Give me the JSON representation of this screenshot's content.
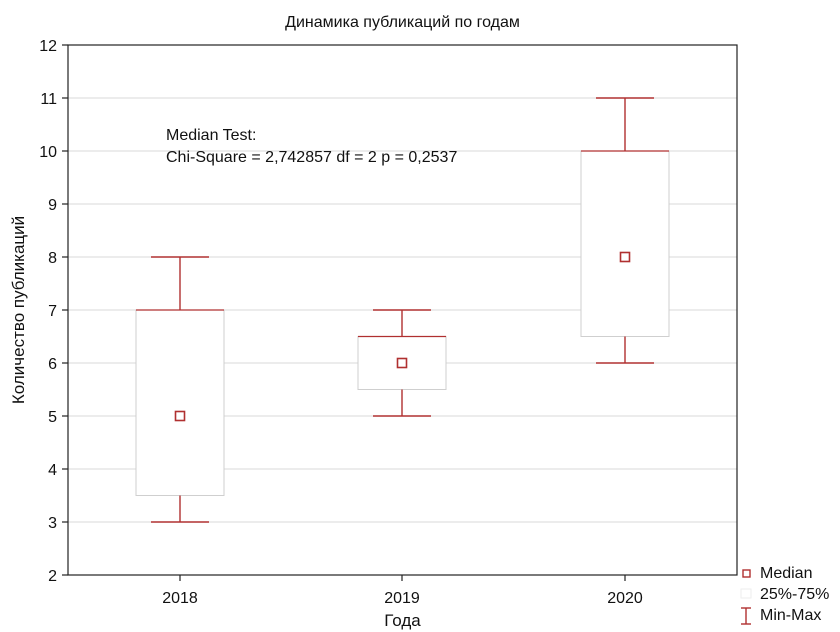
{
  "chart_data": {
    "type": "box",
    "title": "Динамика публикаций по годам",
    "xlabel": "Года",
    "ylabel": "Количество публикаций",
    "ylim": [
      2,
      12
    ],
    "yticks": [
      2,
      3,
      4,
      5,
      6,
      7,
      8,
      9,
      10,
      11,
      12
    ],
    "categories": [
      "2018",
      "2019",
      "2020"
    ],
    "boxes": [
      {
        "category": "2018",
        "min": 3,
        "q1": 3.5,
        "median": 5,
        "q3": 7,
        "max": 8
      },
      {
        "category": "2019",
        "min": 5,
        "q1": 5.5,
        "median": 6,
        "q3": 6.5,
        "max": 7
      },
      {
        "category": "2020",
        "min": 6,
        "q1": 6.5,
        "median": 8,
        "q3": 10,
        "max": 11
      }
    ],
    "annotation": {
      "line1": "Median Test:",
      "line2": "Chi-Square = 2,742857 df = 2 p = 0,2537"
    },
    "legend": {
      "position": "bottom-right",
      "items": [
        {
          "key": "median",
          "label": "Median"
        },
        {
          "key": "box",
          "label": "25%-75%"
        },
        {
          "key": "range",
          "label": "Min-Max"
        }
      ]
    },
    "grid": true,
    "colors": {
      "series": "#b03030",
      "box": "#b03030",
      "axis": "#222222",
      "grid": "#d8d8d8"
    }
  }
}
